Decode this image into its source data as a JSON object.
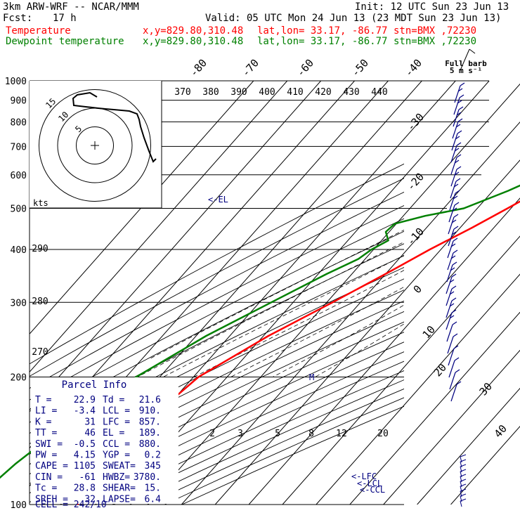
{
  "header": {
    "model": "3km ARW-WRF -- NCAR/MMM",
    "init": "Init: 12 UTC Sun 23 Jun 13",
    "fcst_label": "Fcst:",
    "fcst_value": "17 h",
    "valid": "Valid: 05 UTC Mon 24 Jun 13 (23 MDT Sun 23 Jun 13)",
    "temp_label": "Temperature",
    "dew_label": "Dewpoint temperature",
    "xy": "x,y=829.80,310.48",
    "latlon": "lat,lon= 33.17, -86.77",
    "stn": "stn=BMX ,72230"
  },
  "colors": {
    "temperature": "#ff0000",
    "dewpoint": "#008000",
    "annotation": "#000080"
  },
  "chart_data": {
    "type": "line",
    "title": "Skew-T log-P sounding",
    "ylabel": "",
    "y_axis": "pressure (hPa, log)",
    "ylim": [
      1000,
      100
    ],
    "pressure_ticks": [
      "100",
      "200",
      "300",
      "400",
      "500",
      "600",
      "700",
      "800",
      "900",
      "1000"
    ],
    "isotherm_labels": [
      "-80",
      "-70",
      "-60",
      "-50",
      "-40",
      "-30",
      "-20",
      "-10",
      "0",
      "10",
      "20",
      "30",
      "40"
    ],
    "theta_labels": [
      "370",
      "380",
      "390",
      "400",
      "410",
      "420",
      "430",
      "440"
    ],
    "theta_labels_b": [
      "290",
      "280",
      "270"
    ],
    "mixing_ratio_labels": [
      "2",
      "3",
      "5",
      "8",
      "12",
      "20"
    ],
    "series": [
      {
        "name": "Temperature",
        "pressure": [
          1000,
          985,
          975,
          950,
          925,
          900,
          850,
          800,
          750,
          700,
          650,
          600,
          550,
          500,
          450,
          400,
          350,
          300,
          250,
          200,
          175,
          150,
          125,
          100
        ],
        "value": [
          25.4,
          25.8,
          23.4,
          21.6,
          19.6,
          18.0,
          15.3,
          12.3,
          9.2,
          5.8,
          2.2,
          -1.8,
          -6.2,
          -11.0,
          -16.5,
          -23.3,
          -30.0,
          -38.3,
          -48.5,
          -58.5,
          -60.5,
          -61.0,
          -59.0,
          -61.0
        ]
      },
      {
        "name": "Dewpoint temperature",
        "pressure": [
          1000,
          980,
          950,
          925,
          900,
          850,
          800,
          750,
          700,
          650,
          600,
          550,
          500,
          480,
          460,
          440,
          420,
          400,
          380,
          350,
          300,
          250,
          200,
          175,
          150,
          125,
          100
        ],
        "value": [
          21.6,
          21.4,
          19.6,
          17.6,
          15.8,
          11.7,
          8.4,
          4.0,
          0.2,
          -4.1,
          -9.0,
          -15.5,
          -24.0,
          -33.5,
          -40.5,
          -41.0,
          -38.0,
          -40.6,
          -42.0,
          -47.5,
          -56.5,
          -67.0,
          -77.0,
          -82.0,
          -86.0,
          -90.0,
          -93.0
        ]
      }
    ],
    "annotations": {
      "el": "EL",
      "lfc": "LFC",
      "lcl": "LCL",
      "ccl": "CCL",
      "m": "M"
    }
  },
  "hodograph": {
    "units": "kts",
    "ring_labels": [
      "5",
      "10",
      "15"
    ],
    "u": [
      2,
      3,
      5,
      7,
      9,
      11,
      13,
      14,
      17,
      20,
      22,
      25,
      27,
      28,
      29,
      28,
      29,
      29,
      30,
      31,
      33,
      34,
      35,
      34,
      33,
      33
    ],
    "v": [
      -6,
      -4,
      -2,
      -0.5,
      0,
      0.5,
      1,
      1,
      2,
      3,
      3.5,
      4.5,
      5,
      5,
      5,
      4.5,
      4.5,
      4,
      3,
      2,
      0,
      -1,
      -3,
      -5,
      -8,
      -9
    ]
  },
  "barbs": {
    "title": "Full barb",
    "units": "5 m s⁻¹"
  },
  "parcel_info": {
    "title": "Parcel Info",
    "rows": [
      [
        "T  =",
        "22.9",
        "Td =",
        "21.6"
      ],
      [
        "LI =",
        "-3.4",
        "LCL =",
        "910."
      ],
      [
        "K  =",
        "31",
        "LFC =",
        "857."
      ],
      [
        "TT =",
        "46",
        "EL  =",
        "189."
      ],
      [
        "SWI =",
        "-0.5",
        "CCL =",
        "880."
      ],
      [
        "PW =",
        "4.15",
        "YGP =",
        "0.2"
      ],
      [
        "CAPE =",
        "1105",
        "SWEAT=",
        "345"
      ],
      [
        "CIN =",
        "-61",
        "HWBZ=",
        "3780."
      ],
      [
        "Tc =",
        "28.8",
        "SHEAR=",
        "15."
      ],
      [
        "SREH =",
        "32",
        "LAPSE=",
        "6.4"
      ]
    ],
    "cell": "CELL = 242/10"
  }
}
